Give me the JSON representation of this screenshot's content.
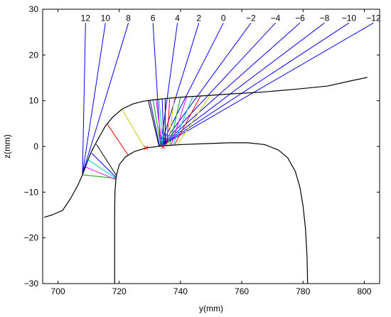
{
  "chart_data": {
    "type": "line",
    "xlabel": "y(mm)",
    "ylabel": "z(mm)",
    "xlim": [
      695,
      805
    ],
    "ylim": [
      -30,
      30
    ],
    "xticks": [
      700,
      720,
      740,
      760,
      780,
      800
    ],
    "yticks": [
      -30,
      -20,
      -10,
      0,
      10,
      20,
      30
    ],
    "grid": false,
    "annotations": [
      {
        "text": "12",
        "x": 709.0,
        "y": 27.0
      },
      {
        "text": "10",
        "x": 715.5,
        "y": 27.0
      },
      {
        "text": "8",
        "x": 723.0,
        "y": 27.0
      },
      {
        "text": "6",
        "x": 731.0,
        "y": 27.0
      },
      {
        "text": "4",
        "x": 739.0,
        "y": 27.0
      },
      {
        "text": "2",
        "x": 746.0,
        "y": 27.0
      },
      {
        "text": "0",
        "x": 754.0,
        "y": 27.0
      },
      {
        "text": "−2",
        "x": 763.0,
        "y": 27.0
      },
      {
        "text": "−4",
        "x": 771.0,
        "y": 27.0
      },
      {
        "text": "−6",
        "x": 779.0,
        "y": 27.0
      },
      {
        "text": "−8",
        "x": 787.0,
        "y": 27.0
      },
      {
        "text": "−10",
        "x": 795.0,
        "y": 27.0
      },
      {
        "text": "−12",
        "x": 803.0,
        "y": 27.0
      }
    ],
    "wheel_profile": {
      "color": "#000000",
      "x": [
        695.5,
        698.0,
        701.5,
        704.0,
        706.5,
        708.0,
        709.5,
        711.0,
        713.0,
        715.5,
        718.0,
        721.0,
        724.5,
        728.0,
        731.5,
        735.5,
        741.0,
        748.0,
        757.0,
        767.0,
        777.5,
        788.0,
        796.0,
        801.0
      ],
      "y": [
        -15.5,
        -15.0,
        -14.0,
        -11.5,
        -8.5,
        -6.2,
        -3.5,
        -1.0,
        1.5,
        4.5,
        6.5,
        8.2,
        9.3,
        9.9,
        10.2,
        10.5,
        10.8,
        11.1,
        11.5,
        11.9,
        12.5,
        13.2,
        14.4,
        15.1
      ]
    },
    "rail_profile": {
      "color": "#000000",
      "x": [
        718.5,
        718.5,
        718.6,
        719.0,
        720.0,
        722.0,
        725.0,
        729.0,
        734.0,
        740.0,
        748.0,
        756.0,
        762.0,
        767.5,
        772.0,
        775.0,
        777.5,
        779.0,
        780.0,
        780.8,
        781.3,
        781.5
      ],
      "y": [
        -30.0,
        -15.0,
        -10.0,
        -6.5,
        -4.0,
        -2.3,
        -1.1,
        -0.3,
        0.1,
        0.4,
        0.6,
        0.8,
        0.8,
        0.4,
        -0.8,
        -2.5,
        -5.5,
        -9.0,
        -13.0,
        -18.0,
        -24.0,
        -30.0
      ]
    },
    "contact_markers": {
      "color": "#ff0000",
      "points": [
        [
          728.8,
          -0.3
        ],
        [
          734.3,
          -0.1
        ]
      ]
    },
    "rays": [
      {
        "label": "12",
        "color": "#0000ff",
        "x": [
          708.0,
          709.0
        ],
        "y": [
          -6.0,
          27.0
        ]
      },
      {
        "label": "10",
        "color": "#0000ff",
        "x": [
          708.0,
          715.5
        ],
        "y": [
          -6.0,
          27.0
        ]
      },
      {
        "label": "8",
        "color": "#0000ff",
        "x": [
          708.0,
          723.0
        ],
        "y": [
          -6.0,
          27.0
        ]
      },
      {
        "label": "6",
        "color": "#0000ff",
        "x": [
          733.5,
          731.0
        ],
        "y": [
          0.0,
          27.0
        ]
      },
      {
        "label": "4",
        "color": "#0000ff",
        "x": [
          733.5,
          739.0
        ],
        "y": [
          0.0,
          27.0
        ]
      },
      {
        "label": "2",
        "color": "#0000ff",
        "x": [
          733.5,
          746.0
        ],
        "y": [
          0.0,
          27.0
        ]
      },
      {
        "label": "0",
        "color": "#0000ff",
        "x": [
          733.5,
          754.0
        ],
        "y": [
          0.0,
          27.0
        ]
      },
      {
        "label": "−2",
        "color": "#0000ff",
        "x": [
          733.5,
          763.0
        ],
        "y": [
          0.0,
          27.0
        ]
      },
      {
        "label": "−4",
        "color": "#0000ff",
        "x": [
          733.5,
          771.0
        ],
        "y": [
          0.0,
          27.0
        ]
      },
      {
        "label": "−6",
        "color": "#0000ff",
        "x": [
          733.5,
          779.0
        ],
        "y": [
          0.0,
          27.0
        ]
      },
      {
        "label": "−8",
        "color": "#0000ff",
        "x": [
          733.5,
          787.0
        ],
        "y": [
          0.0,
          27.0
        ]
      },
      {
        "label": "−10",
        "color": "#0000ff",
        "x": [
          733.5,
          795.0
        ],
        "y": [
          0.0,
          27.0
        ]
      },
      {
        "label": "−12",
        "color": "#0000ff",
        "x": [
          733.5,
          803.0
        ],
        "y": [
          0.0,
          27.0
        ]
      }
    ],
    "contact_segments": [
      {
        "color": "#00aa00",
        "x": [
          708.0,
          719.0
        ],
        "y": [
          -6.2,
          -7.0
        ]
      },
      {
        "color": "#ff00ff",
        "x": [
          709.0,
          719.0
        ],
        "y": [
          -4.5,
          -7.3
        ]
      },
      {
        "color": "#00cccc",
        "x": [
          710.0,
          719.0
        ],
        "y": [
          -3.0,
          -7.0
        ]
      },
      {
        "color": "#0000ff",
        "x": [
          711.0,
          719.0
        ],
        "y": [
          -1.5,
          -6.8
        ]
      },
      {
        "color": "#000000",
        "x": [
          712.5,
          719.2
        ],
        "y": [
          0.5,
          -6.5
        ]
      },
      {
        "color": "#ff0000",
        "x": [
          716.0,
          723.0
        ],
        "y": [
          5.0,
          -2.0
        ]
      },
      {
        "color": "#c8c800",
        "x": [
          721.0,
          728.5
        ],
        "y": [
          8.0,
          -0.5
        ]
      },
      {
        "color": "#000000",
        "x": [
          729.5,
          733.0
        ],
        "y": [
          10.0,
          0.0
        ]
      },
      {
        "color": "#0000ff",
        "x": [
          730.0,
          733.2
        ],
        "y": [
          10.2,
          0.0
        ]
      },
      {
        "color": "#00aa00",
        "x": [
          731.0,
          733.6
        ],
        "y": [
          10.3,
          0.0
        ]
      },
      {
        "color": "#ff00ff",
        "x": [
          732.0,
          734.0
        ],
        "y": [
          10.4,
          0.0
        ]
      },
      {
        "color": "#00cccc",
        "x": [
          733.0,
          734.3
        ],
        "y": [
          10.4,
          0.0
        ]
      },
      {
        "color": "#0000ff",
        "x": [
          734.0,
          734.6
        ],
        "y": [
          10.5,
          0.1
        ]
      },
      {
        "color": "#000000",
        "x": [
          735.0,
          735.0
        ],
        "y": [
          10.5,
          0.1
        ]
      },
      {
        "color": "#ff0000",
        "x": [
          736.5,
          735.5
        ],
        "y": [
          10.6,
          0.2
        ]
      },
      {
        "color": "#c8c800",
        "x": [
          738.0,
          736.0
        ],
        "y": [
          10.7,
          0.2
        ]
      },
      {
        "color": "#00aa00",
        "x": [
          740.0,
          736.5
        ],
        "y": [
          10.8,
          0.2
        ]
      },
      {
        "color": "#ff00ff",
        "x": [
          742.0,
          737.0
        ],
        "y": [
          10.8,
          0.3
        ]
      },
      {
        "color": "#00cccc",
        "x": [
          744.0,
          737.5
        ],
        "y": [
          10.9,
          0.3
        ]
      },
      {
        "color": "#ff0000",
        "x": [
          746.5,
          738.0
        ],
        "y": [
          11.0,
          0.3
        ]
      },
      {
        "color": "#c8c800",
        "x": [
          749.5,
          739.0
        ],
        "y": [
          11.0,
          0.4
        ]
      }
    ]
  }
}
